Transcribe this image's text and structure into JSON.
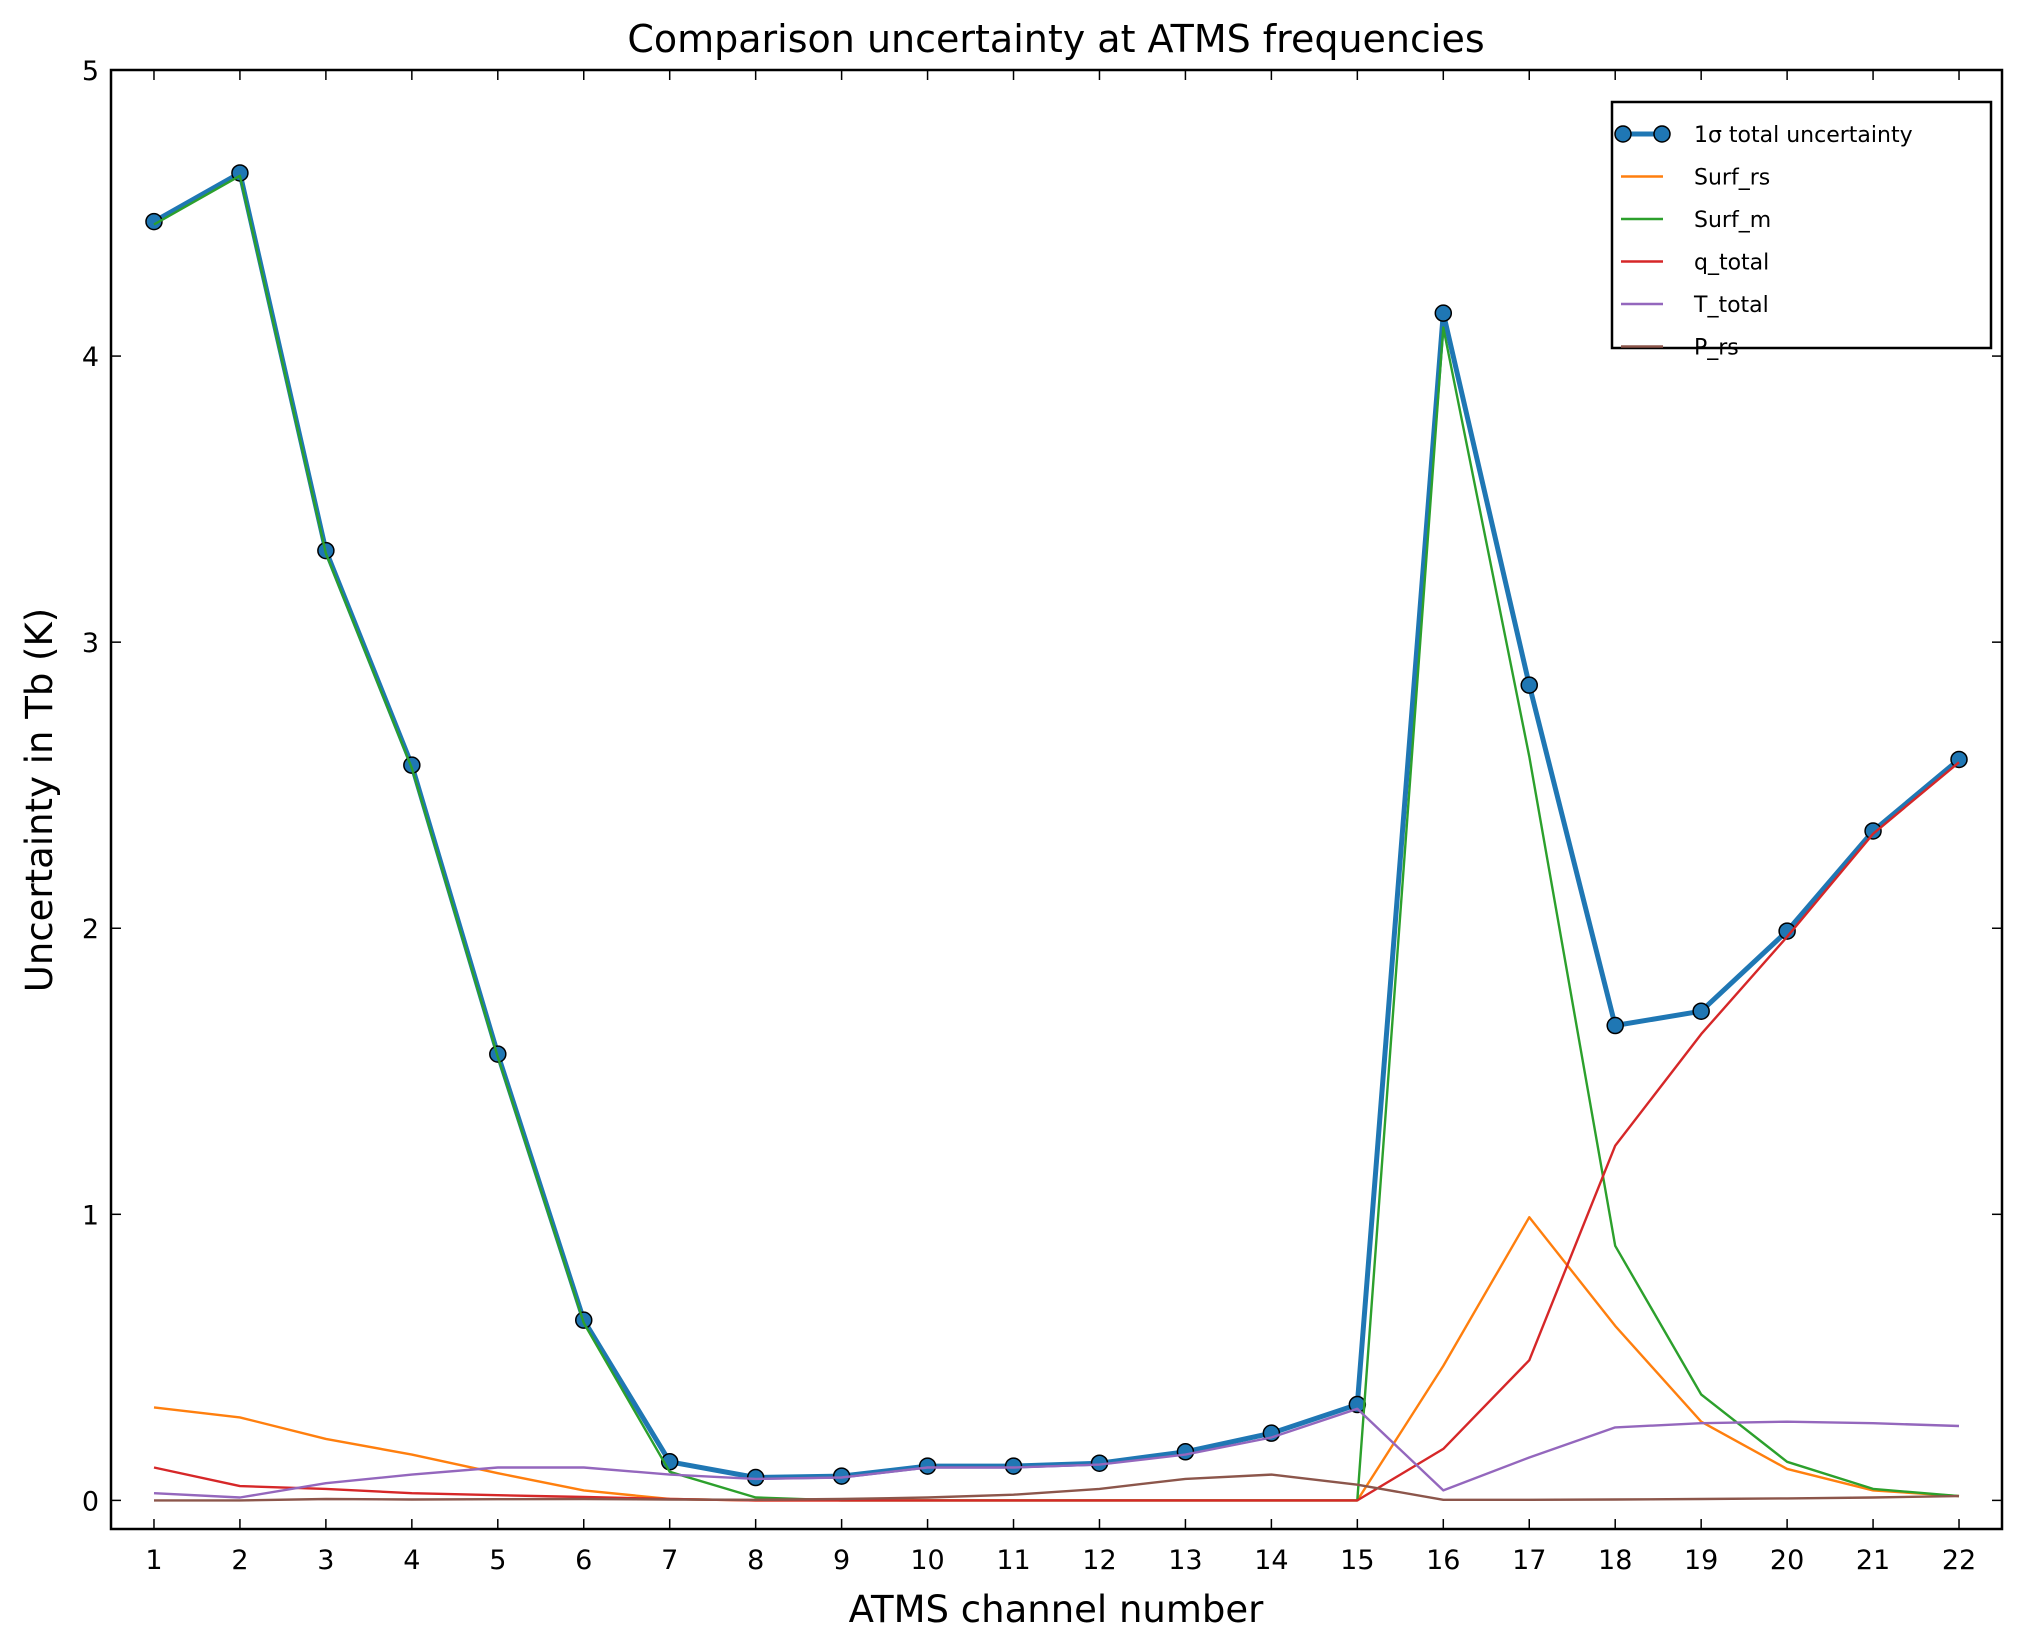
{
  "chart_data": {
    "type": "line",
    "title": "Comparison uncertainty at ATMS frequencies",
    "xlabel": "ATMS channel number",
    "ylabel": "Uncertainty in Tb (K)",
    "xlim": [
      0.5,
      22.5
    ],
    "ylim": [
      -0.1,
      5
    ],
    "grid": false,
    "legend_position": "top-right",
    "x": [
      1,
      2,
      3,
      4,
      5,
      6,
      7,
      8,
      9,
      10,
      11,
      12,
      13,
      14,
      15,
      16,
      17,
      18,
      19,
      20,
      21,
      22
    ],
    "x_ticks": [
      "1",
      "2",
      "3",
      "4",
      "5",
      "6",
      "7",
      "8",
      "9",
      "10",
      "11",
      "12",
      "13",
      "14",
      "15",
      "16",
      "17",
      "18",
      "19",
      "20",
      "21",
      "22"
    ],
    "y_ticks": [
      "0",
      "1",
      "2",
      "3",
      "4",
      "5"
    ],
    "series": [
      {
        "name": "1σ total uncertainty",
        "color": "#1f77b4",
        "marker": "circle",
        "values": [
          4.47,
          4.64,
          3.32,
          2.57,
          1.56,
          0.63,
          0.135,
          0.08,
          0.085,
          0.12,
          0.12,
          0.13,
          0.17,
          0.235,
          0.335,
          4.15,
          2.85,
          1.66,
          1.71,
          1.99,
          2.34,
          2.59
        ]
      },
      {
        "name": "Surf_rs",
        "color": "#ff7f0e",
        "values": [
          0.325,
          0.29,
          0.215,
          0.16,
          0.095,
          0.035,
          0.005,
          0,
          0,
          0,
          0,
          0,
          0,
          0,
          0,
          0.47,
          0.99,
          0.61,
          0.275,
          0.11,
          0.035,
          0.015
        ]
      },
      {
        "name": "Surf_m",
        "color": "#2ca02c",
        "values": [
          4.46,
          4.63,
          3.31,
          2.56,
          1.55,
          0.62,
          0.1,
          0.01,
          0,
          0,
          0,
          0,
          0,
          0,
          0,
          4.1,
          2.6,
          0.89,
          0.37,
          0.135,
          0.04,
          0.015
        ]
      },
      {
        "name": "q_total",
        "color": "#d62728",
        "values": [
          0.115,
          0.05,
          0.04,
          0.025,
          0.018,
          0.012,
          0.005,
          0,
          0,
          0,
          0,
          0,
          0,
          0,
          0,
          0.18,
          0.49,
          1.24,
          1.63,
          1.97,
          2.33,
          2.58
        ]
      },
      {
        "name": "T_total",
        "color": "#9467bd",
        "values": [
          0.025,
          0.01,
          0.06,
          0.09,
          0.115,
          0.115,
          0.09,
          0.075,
          0.08,
          0.115,
          0.115,
          0.125,
          0.16,
          0.22,
          0.32,
          0.035,
          0.15,
          0.255,
          0.27,
          0.275,
          0.27,
          0.26
        ]
      },
      {
        "name": "P_rs",
        "color": "#8c564b",
        "values": [
          0,
          0,
          0.005,
          0.003,
          0.004,
          0.005,
          0.003,
          0.002,
          0.005,
          0.01,
          0.02,
          0.04,
          0.075,
          0.09,
          0.055,
          0.002,
          0.002,
          0.003,
          0.005,
          0.007,
          0.01,
          0.015
        ]
      }
    ]
  }
}
